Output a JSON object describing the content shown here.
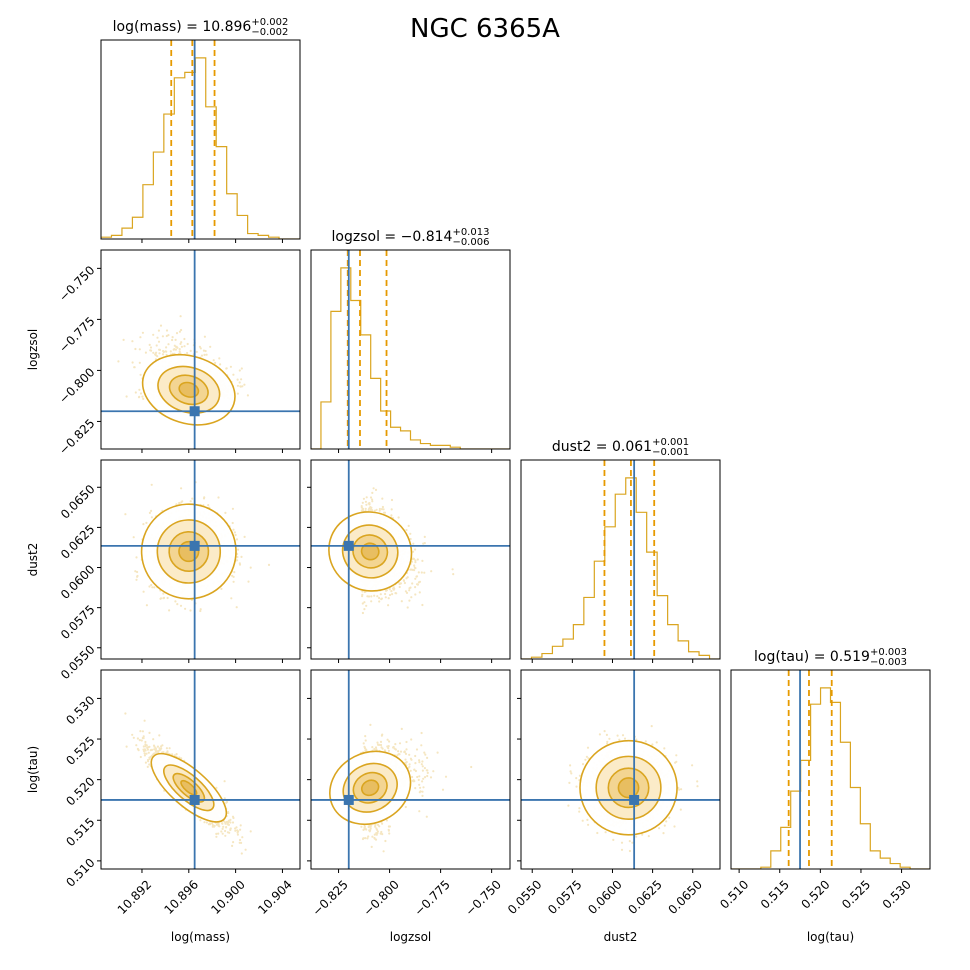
{
  "figure": {
    "title": "NGC 6365A"
  },
  "chart_data": {
    "type": "corner",
    "title": "NGC 6365A",
    "colors": {
      "samples": "#DAA520",
      "truth": "#3B75AF",
      "quantile": "#E69A00",
      "axis": "#000000"
    },
    "parameters": [
      {
        "name": "log(mass)",
        "median": 10.896,
        "plus": "+0.002",
        "minus": "−0.002",
        "title_prefix": "log(mass) = 10.896",
        "range": [
          10.8885,
          10.9055
        ],
        "ticks": [
          10.892,
          10.896,
          10.9,
          10.904
        ],
        "tick_labels": [
          "10.892",
          "10.896",
          "10.900",
          "10.904"
        ],
        "truth": 10.8965,
        "quantiles": [
          10.8945,
          10.8963,
          10.8982
        ],
        "sigma": 0.0016,
        "hist": [
          0.01,
          0.02,
          0.06,
          0.12,
          0.3,
          0.48,
          0.69,
          0.89,
          0.92,
          1.0,
          0.73,
          0.51,
          0.25,
          0.13,
          0.03,
          0.02,
          0.01,
          0.0,
          0.0
        ]
      },
      {
        "name": "logzsol",
        "median": -0.814,
        "plus": "+0.013",
        "minus": "−0.006",
        "title_prefix": "logzsol = −0.814",
        "range": [
          -0.8385,
          -0.741
        ],
        "ticks": [
          -0.825,
          -0.8,
          -0.775,
          -0.75
        ],
        "tick_labels": [
          "−0.825",
          "−0.800",
          "−0.775",
          "−0.750"
        ],
        "truth": -0.82,
        "quantiles": [
          -0.8205,
          -0.8145,
          -0.8015
        ],
        "sigma": 0.009,
        "hist": [
          0.0,
          0.26,
          0.76,
          1.0,
          0.82,
          0.63,
          0.39,
          0.21,
          0.12,
          0.1,
          0.05,
          0.03,
          0.02,
          0.02,
          0.01,
          0.0,
          0.0,
          0.0,
          0.0,
          0.0
        ]
      },
      {
        "name": "dust2",
        "median": 0.061,
        "plus": "+0.001",
        "minus": "−0.001",
        "title_prefix": "dust2 = 0.061",
        "range": [
          0.0543,
          0.0667
        ],
        "ticks": [
          0.055,
          0.0575,
          0.06,
          0.0625,
          0.065
        ],
        "tick_labels": [
          "0.0550",
          "0.0575",
          "0.0600",
          "0.0625",
          "0.0650"
        ],
        "truth": 0.06135,
        "quantiles": [
          0.0595,
          0.06115,
          0.0626
        ],
        "sigma": 0.0012,
        "hist": [
          0.0,
          0.01,
          0.03,
          0.07,
          0.11,
          0.19,
          0.34,
          0.54,
          0.73,
          0.91,
          1.0,
          0.81,
          0.59,
          0.35,
          0.19,
          0.1,
          0.04,
          0.02,
          0.0
        ]
      },
      {
        "name": "log(tau)",
        "median": 0.519,
        "plus": "+0.003",
        "minus": "−0.003",
        "title_prefix": "log(tau) = 0.519",
        "range": [
          0.509,
          0.5335
        ],
        "ticks": [
          0.51,
          0.515,
          0.52,
          0.525,
          0.53
        ],
        "tick_labels": [
          "0.510",
          "0.515",
          "0.520",
          "0.525",
          "0.530"
        ],
        "truth": 0.5175,
        "quantiles": [
          0.5161,
          0.5186,
          0.5214
        ],
        "sigma": 0.0023,
        "hist": [
          0.0,
          0.0,
          0.0,
          0.01,
          0.1,
          0.23,
          0.43,
          0.6,
          0.91,
          1.0,
          0.92,
          0.7,
          0.45,
          0.25,
          0.1,
          0.06,
          0.03,
          0.01,
          0.0,
          0.0
        ]
      }
    ],
    "correlations": {
      "1_0": -0.35,
      "2_0": 0.05,
      "2_1": -0.35,
      "3_0": -0.88,
      "3_1": 0.45,
      "3_2": 0.0
    }
  }
}
